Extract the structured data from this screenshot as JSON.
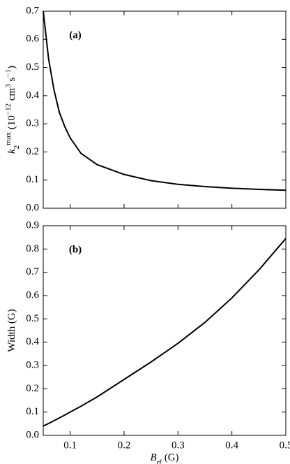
{
  "chart_data": [
    {
      "type": "line",
      "annotation": "(a)",
      "ylabel_parts": [
        {
          "text": "k",
          "shift": "italic"
        },
        {
          "text": "2",
          "shift": "sub"
        },
        {
          "text": "max",
          "shift": "sup"
        },
        {
          "text": " (10",
          "shift": "normal"
        },
        {
          "text": "−12",
          "shift": "sup"
        },
        {
          "text": " cm",
          "shift": "normal"
        },
        {
          "text": "3",
          "shift": "sup"
        },
        {
          "text": " s",
          "shift": "normal"
        },
        {
          "text": "−1",
          "shift": "sup"
        },
        {
          "text": ")",
          "shift": "normal"
        }
      ],
      "x": [
        0.05,
        0.06,
        0.07,
        0.08,
        0.09,
        0.1,
        0.12,
        0.15,
        0.2,
        0.25,
        0.3,
        0.35,
        0.4,
        0.45,
        0.5
      ],
      "series": [
        {
          "color": "#000000",
          "values": [
            0.7,
            0.53,
            0.42,
            0.34,
            0.29,
            0.25,
            0.195,
            0.155,
            0.12,
            0.098,
            0.085,
            0.077,
            0.071,
            0.067,
            0.064
          ]
        }
      ],
      "xlim": [
        0.05,
        0.5
      ],
      "xticks": [
        0.1,
        0.2,
        0.3,
        0.4,
        0.5
      ],
      "show_xtick_labels": false,
      "ylim": [
        0,
        0.7
      ],
      "yticks": [
        {
          "value": 0,
          "label": "0.0"
        },
        0.1,
        0.2,
        0.3,
        0.4,
        0.5,
        0.6,
        0.7
      ]
    },
    {
      "type": "line",
      "annotation": "(b)",
      "ylabel_parts": [
        {
          "text": "Width (G)",
          "shift": "normal"
        }
      ],
      "xlabel_parts": [
        {
          "text": "B",
          "shift": "italic"
        },
        {
          "text": "rf",
          "shift": "sub"
        },
        {
          "text": " (G)",
          "shift": "normal"
        }
      ],
      "x": [
        0.05,
        0.06,
        0.07,
        0.08,
        0.09,
        0.1,
        0.12,
        0.15,
        0.2,
        0.25,
        0.3,
        0.35,
        0.4,
        0.45,
        0.5
      ],
      "series": [
        {
          "color": "#000000",
          "values": [
            0.04,
            0.051,
            0.063,
            0.075,
            0.087,
            0.1,
            0.125,
            0.165,
            0.24,
            0.315,
            0.395,
            0.485,
            0.59,
            0.71,
            0.845
          ]
        }
      ],
      "xlim": [
        0.05,
        0.5
      ],
      "xticks": [
        0.1,
        0.2,
        0.3,
        0.4,
        0.5
      ],
      "show_xtick_labels": true,
      "ylim": [
        0,
        0.9
      ],
      "yticks": [
        {
          "value": 0,
          "label": "0.0"
        },
        0.1,
        0.2,
        0.3,
        0.4,
        0.5,
        0.6,
        0.7,
        0.8,
        0.9
      ]
    }
  ]
}
